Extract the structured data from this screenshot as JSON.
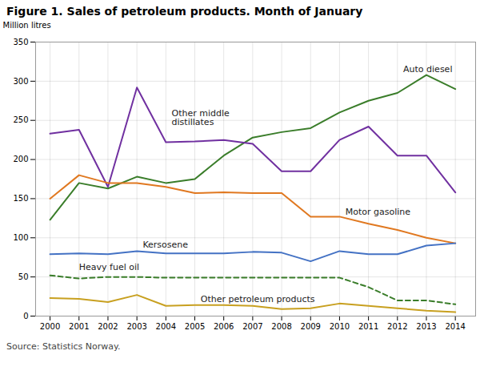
{
  "chart_data": {
    "type": "line",
    "title": "Figure 1. Sales of petroleum products. Month of January",
    "ylabel": "Million litres",
    "caption": "Source: Statistics Norway.",
    "x": [
      2000,
      2001,
      2002,
      2003,
      2004,
      2005,
      2006,
      2007,
      2008,
      2009,
      2010,
      2011,
      2012,
      2013,
      2014
    ],
    "series": [
      {
        "name": "Auto diesel",
        "color": "#3a7d2a",
        "line_style": "solid",
        "values": [
          123,
          170,
          163,
          178,
          170,
          175,
          205,
          228,
          235,
          240,
          260,
          275,
          285,
          308,
          290
        ]
      },
      {
        "name": "Other middle distillates",
        "color": "#7030a0",
        "line_style": "solid",
        "values": [
          233,
          238,
          165,
          292,
          222,
          223,
          225,
          220,
          185,
          185,
          225,
          242,
          205,
          205,
          158
        ]
      },
      {
        "name": "Motor gasoline",
        "color": "#e07820",
        "line_style": "solid",
        "values": [
          150,
          180,
          170,
          170,
          165,
          157,
          158,
          157,
          157,
          127,
          127,
          118,
          110,
          100,
          93
        ]
      },
      {
        "name": "Kersosene",
        "color": "#4472c4",
        "line_style": "solid",
        "values": [
          79,
          80,
          79,
          83,
          80,
          80,
          80,
          82,
          81,
          70,
          83,
          79,
          79,
          90,
          93
        ]
      },
      {
        "name": "Heavy fuel oil",
        "color": "#3a7d2a",
        "line_style": "dashed",
        "values": [
          52,
          48,
          50,
          50,
          49,
          49,
          49,
          49,
          49,
          49,
          49,
          37,
          20,
          20,
          15
        ]
      },
      {
        "name": "Other petroleum products",
        "color": "#c8a020",
        "line_style": "solid",
        "values": [
          23,
          22,
          18,
          27,
          13,
          14,
          14,
          13,
          9,
          10,
          16,
          13,
          10,
          7,
          5
        ]
      }
    ],
    "annotations": [
      {
        "text": "Auto diesel",
        "x": 2012.2,
        "y": 315
      },
      {
        "text": "Other middle\ndistillates",
        "x": 2004.2,
        "y": 253
      },
      {
        "text": "Motor gasoline",
        "x": 2010.2,
        "y": 133
      },
      {
        "text": "Kersosene",
        "x": 2003.2,
        "y": 91
      },
      {
        "text": "Heavy fuel oil",
        "x": 2001.0,
        "y": 62
      },
      {
        "text": "Other petroleum products",
        "x": 2005.2,
        "y": 22
      }
    ],
    "xlim": [
      1999.5,
      2014.7
    ],
    "xticks": [
      2000,
      2001,
      2002,
      2003,
      2004,
      2005,
      2006,
      2007,
      2008,
      2009,
      2010,
      2011,
      2012,
      2013,
      2014
    ],
    "ylim": [
      0,
      350
    ],
    "yticks": [
      0,
      50,
      100,
      150,
      200,
      250,
      300,
      350
    ],
    "grid": true
  }
}
